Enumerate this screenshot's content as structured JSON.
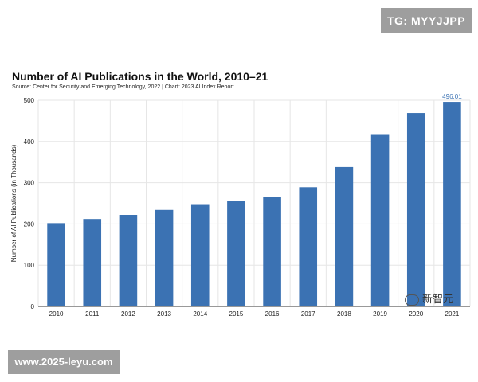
{
  "overlays": {
    "top_badge": "TG: MYYJJPP",
    "footer_badge": "www.2025-leyu.com",
    "watermark": "新智元"
  },
  "colors": {
    "bar": "#3b72b3",
    "label": "#3b72b3",
    "grid": "#e6e6e6",
    "axis": "#333333"
  },
  "chart_data": {
    "type": "bar",
    "title": "Number of AI Publications in the World, 2010–21",
    "subtitle": "Source: Center for Security and Emerging Technology, 2022 | Chart: 2023 AI Index Report",
    "xlabel": "",
    "ylabel": "Number of AI Publications (in Thousands)",
    "categories": [
      "2010",
      "2011",
      "2012",
      "2013",
      "2014",
      "2015",
      "2016",
      "2017",
      "2018",
      "2019",
      "2020",
      "2021"
    ],
    "values": [
      202,
      212,
      222,
      234,
      248,
      256,
      265,
      289,
      338,
      416,
      469,
      496.01
    ],
    "data_labels": {
      "11": "496.01"
    },
    "ylim": [
      0,
      500
    ],
    "yticks": [
      "0",
      "100",
      "200",
      "300",
      "400",
      "500"
    ],
    "grid": "vertical-and-horizontal",
    "legend": "none"
  }
}
